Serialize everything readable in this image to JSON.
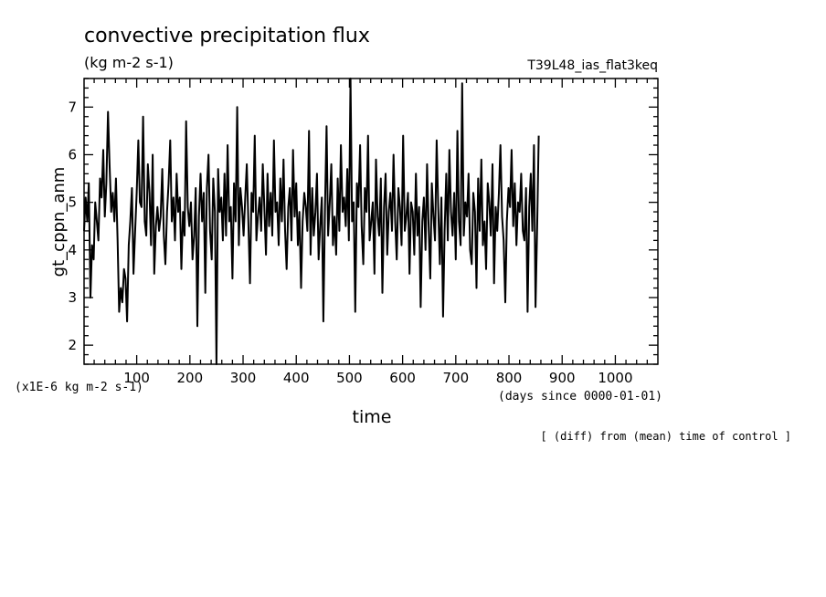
{
  "chart_data": {
    "type": "line",
    "title": "convective precipitation flux",
    "units": "(kg m-2 s-1)",
    "run_label": "T39L48_ias_flat3keq",
    "ylabel": "gt_cppn_anm",
    "xlabel": "time",
    "y_scale_note": "(x1E-6 kg m-2 s-1)",
    "x_units_note": "(days since 0000-01-01)",
    "footnote": "[ (diff) from (mean) time of control ]",
    "xlim": [
      1,
      1080
    ],
    "ylim": [
      1.6,
      7.6
    ],
    "x_ticks": [
      100,
      200,
      300,
      400,
      500,
      600,
      700,
      800,
      900,
      1000
    ],
    "y_ticks": [
      2,
      3,
      4,
      5,
      6,
      7
    ],
    "grid": false,
    "series": [
      {
        "x_start": 1,
        "x_step": 3,
        "values": [
          4.4,
          5.1,
          4.6,
          5.4,
          3.0,
          4.1,
          3.8,
          5.0,
          4.6,
          4.2,
          5.5,
          5.1,
          6.1,
          4.7,
          5.4,
          6.9,
          5.8,
          4.8,
          5.2,
          4.6,
          5.5,
          4.2,
          2.7,
          3.2,
          2.9,
          3.6,
          3.4,
          2.5,
          4.1,
          4.6,
          5.3,
          3.5,
          4.4,
          5.2,
          6.3,
          5.0,
          4.9,
          6.8,
          4.6,
          4.3,
          5.8,
          5.2,
          4.1,
          6.0,
          3.5,
          4.5,
          4.9,
          4.4,
          4.7,
          5.7,
          4.3,
          3.7,
          4.8,
          5.4,
          6.3,
          4.6,
          5.1,
          4.2,
          5.6,
          4.8,
          5.1,
          3.6,
          4.8,
          4.3,
          6.7,
          4.9,
          4.5,
          5.0,
          3.8,
          4.3,
          5.3,
          2.4,
          4.7,
          5.6,
          4.6,
          5.2,
          3.1,
          5.3,
          6.0,
          4.4,
          3.8,
          5.5,
          4.8,
          1.6,
          5.7,
          4.8,
          5.1,
          4.2,
          5.6,
          4.3,
          6.2,
          4.6,
          4.9,
          3.4,
          5.4,
          4.6,
          7.0,
          4.1,
          5.3,
          4.9,
          4.3,
          5.1,
          5.8,
          4.6,
          3.3,
          5.2,
          4.8,
          6.4,
          4.2,
          4.7,
          5.1,
          4.4,
          5.8,
          4.9,
          3.9,
          5.6,
          4.5,
          5.2,
          4.3,
          6.3,
          4.8,
          5.0,
          4.1,
          5.5,
          4.6,
          5.9,
          4.4,
          3.6,
          4.9,
          5.3,
          4.2,
          6.1,
          4.7,
          5.4,
          4.1,
          4.8,
          3.2,
          4.6,
          5.2,
          4.9,
          4.4,
          6.5,
          3.9,
          5.3,
          4.3,
          4.8,
          5.6,
          3.8,
          4.5,
          5.1,
          2.5,
          4.9,
          6.6,
          4.3,
          5.0,
          5.8,
          4.1,
          4.7,
          3.9,
          5.5,
          4.4,
          6.2,
          4.8,
          5.1,
          4.5,
          5.7,
          4.2,
          7.6,
          4.6,
          5.0,
          2.7,
          5.4,
          4.9,
          6.2,
          4.5,
          3.7,
          5.3,
          4.8,
          6.4,
          4.2,
          4.6,
          5.0,
          3.5,
          5.9,
          4.7,
          4.3,
          5.5,
          3.1,
          4.9,
          5.6,
          3.9,
          4.8,
          5.2,
          4.4,
          6.0,
          4.6,
          3.8,
          5.3,
          4.9,
          4.1,
          6.4,
          4.4,
          4.7,
          5.2,
          3.5,
          5.0,
          4.8,
          3.9,
          5.6,
          4.3,
          4.9,
          2.8,
          4.6,
          5.1,
          4.0,
          5.8,
          4.5,
          3.4,
          5.4,
          4.7,
          4.2,
          6.3,
          4.9,
          3.7,
          5.1,
          2.6,
          4.4,
          5.6,
          4.2,
          6.1,
          4.8,
          4.3,
          5.2,
          3.8,
          6.5,
          4.6,
          4.1,
          7.5,
          4.3,
          5.0,
          4.7,
          5.6,
          4.0,
          3.7,
          5.2,
          4.8,
          3.2,
          5.5,
          4.4,
          5.9,
          4.1,
          4.6,
          3.6,
          5.4,
          5.0,
          4.3,
          5.8,
          3.3,
          4.9,
          4.4,
          5.2,
          6.2,
          4.7,
          4.2,
          2.9,
          4.6,
          5.3,
          4.9,
          6.1,
          4.5,
          5.4,
          4.1,
          5.0,
          4.8,
          5.6,
          4.4,
          4.2,
          5.3,
          2.7,
          4.9,
          5.6,
          4.4,
          6.2,
          2.8,
          4.5,
          6.4
        ]
      }
    ]
  }
}
